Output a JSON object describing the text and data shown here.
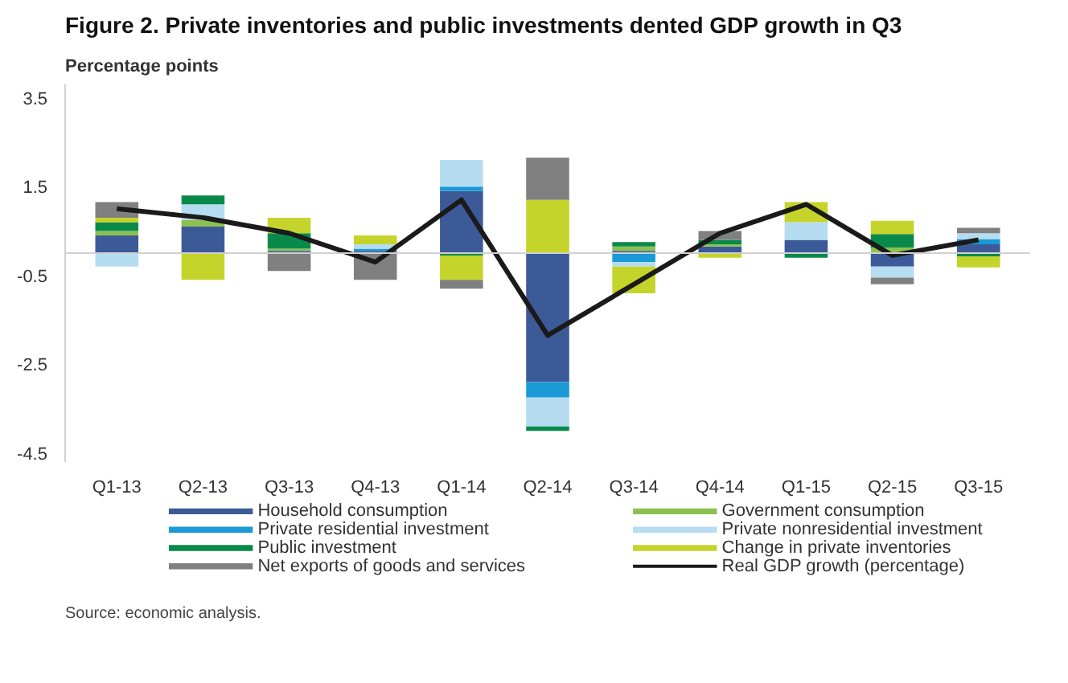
{
  "chart_data": {
    "type": "bar",
    "stacked": true,
    "title": "Figure 2. Private inventories and public investments dented GDP growth in Q3",
    "ylabel": "Percentage points",
    "categories": [
      "Q1-13",
      "Q2-13",
      "Q3-13",
      "Q4-13",
      "Q1-14",
      "Q2-14",
      "Q3-14",
      "Q4-14",
      "Q1-15",
      "Q2-15",
      "Q3-15"
    ],
    "series": [
      {
        "name": "Household consumption",
        "color": "#3d5a98",
        "values": [
          0.4,
          0.6,
          0.05,
          0.05,
          1.4,
          -2.9,
          0.05,
          0.15,
          0.3,
          -0.3,
          0.2
        ]
      },
      {
        "name": "Government consumption",
        "color": "#8cc152",
        "values": [
          0.1,
          0.15,
          0.05,
          0.0,
          0.0,
          0.0,
          0.1,
          0.05,
          0.0,
          0.13,
          0.0
        ]
      },
      {
        "name": "Private residential investment",
        "color": "#1a9ad6",
        "values": [
          0.0,
          0.0,
          0.0,
          0.05,
          0.1,
          -0.35,
          -0.2,
          0.0,
          0.0,
          0.0,
          0.12
        ]
      },
      {
        "name": "Private nonresidential investment",
        "color": "#b5dcf0",
        "values": [
          -0.3,
          0.35,
          0.0,
          0.1,
          0.6,
          -0.65,
          -0.1,
          0.0,
          0.4,
          -0.25,
          0.13
        ]
      },
      {
        "name": "Public investment",
        "color": "#0a8a4a",
        "values": [
          0.2,
          0.2,
          0.35,
          0.0,
          -0.05,
          -0.1,
          0.1,
          0.1,
          -0.1,
          0.3,
          -0.07
        ]
      },
      {
        "name": "Change in private inventories",
        "color": "#c5d42a",
        "values": [
          0.1,
          -0.6,
          0.35,
          0.2,
          -0.55,
          1.2,
          -0.6,
          -0.1,
          0.45,
          0.3,
          -0.25
        ]
      },
      {
        "name": "Net exports of goods and services",
        "color": "#808080",
        "values": [
          0.35,
          0.0,
          -0.4,
          -0.6,
          -0.2,
          0.95,
          0.0,
          0.2,
          0.0,
          -0.15,
          0.12
        ]
      },
      {
        "name": "Real GDP growth (percentage)",
        "color": "#1a1a1a",
        "type": "line",
        "values": [
          1.0,
          0.8,
          0.45,
          -0.2,
          1.2,
          -1.85,
          -0.7,
          0.45,
          1.1,
          -0.05,
          0.3
        ]
      }
    ],
    "ylim": [
      -4.7,
      3.8
    ],
    "yticks": [
      3.5,
      1.5,
      -0.5,
      -2.5,
      -4.5
    ],
    "ref_lines": [
      {
        "axis": "y",
        "value": 0,
        "color": "#d0d0d0"
      }
    ],
    "grid": false,
    "legend": "bottom",
    "annotations": [
      "Source: economic analysis."
    ]
  }
}
